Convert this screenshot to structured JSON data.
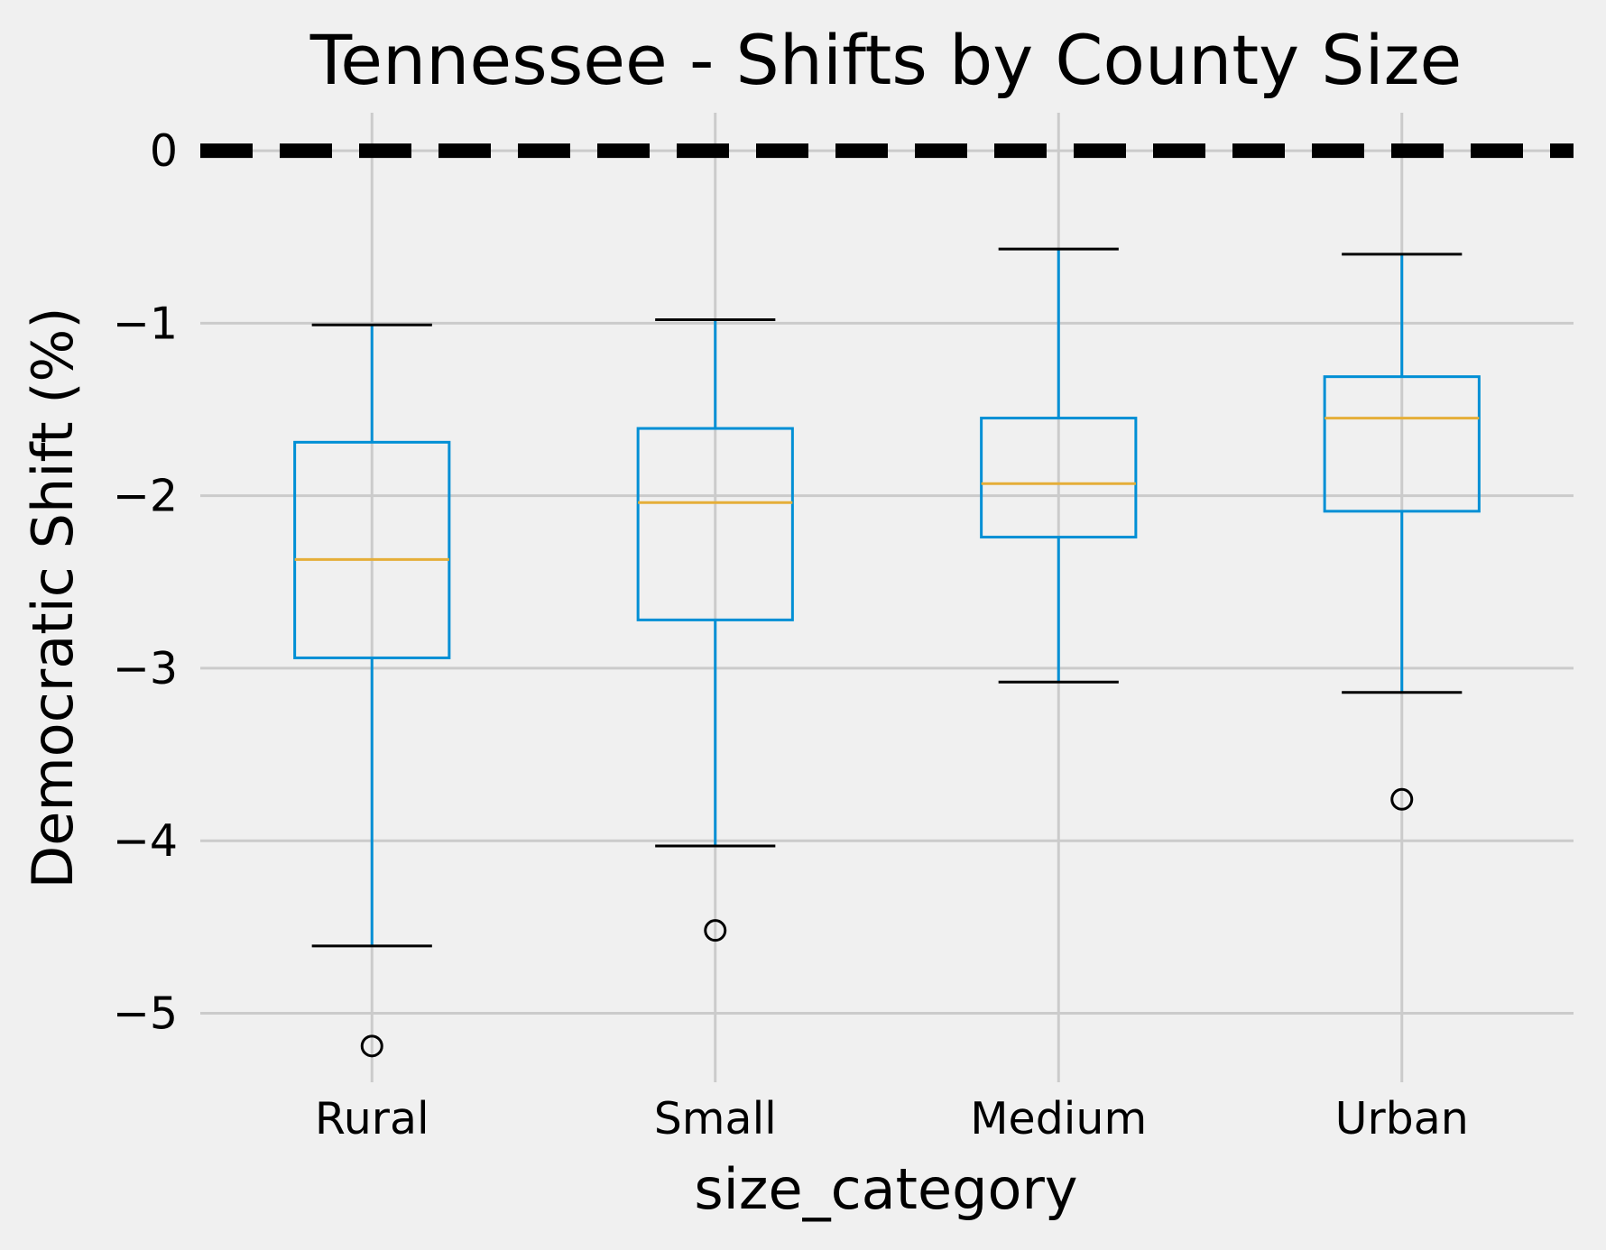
{
  "chart_data": {
    "type": "box",
    "title": "Tennessee - Shifts by County Size",
    "xlabel": "size_category",
    "ylabel": "Democratic Shift (%)",
    "categories": [
      "Rural",
      "Small",
      "Medium",
      "Urban"
    ],
    "y_ticks": [
      0,
      -1,
      -2,
      -3,
      -4,
      -5
    ],
    "y_tick_labels": [
      "0",
      "−1",
      "−2",
      "−3",
      "−4",
      "−5"
    ],
    "ylim": [
      -5.4,
      0.22
    ],
    "grid": true,
    "reference_line": {
      "y": 0,
      "style": "dashed",
      "color": "#000000"
    },
    "boxes": [
      {
        "category": "Rural",
        "whisker_low": -4.61,
        "q1": -2.94,
        "median": -2.37,
        "q3": -1.69,
        "whisker_high": -1.01,
        "outliers": [
          -5.19
        ]
      },
      {
        "category": "Small",
        "whisker_low": -4.03,
        "q1": -2.72,
        "median": -2.04,
        "q3": -1.61,
        "whisker_high": -0.98,
        "outliers": [
          -4.52
        ]
      },
      {
        "category": "Medium",
        "whisker_low": -3.08,
        "q1": -2.24,
        "median": -1.93,
        "q3": -1.55,
        "whisker_high": -0.57,
        "outliers": []
      },
      {
        "category": "Urban",
        "whisker_low": -3.14,
        "q1": -2.09,
        "median": -1.55,
        "q3": -1.31,
        "whisker_high": -0.6,
        "outliers": [
          -3.76
        ]
      }
    ],
    "colors": {
      "background": "#f0f0f0",
      "grid": "#cbcbcb",
      "box": "#008fd5",
      "median": "#e5ae38",
      "cap": "#000000",
      "outlier": "#000000"
    }
  }
}
